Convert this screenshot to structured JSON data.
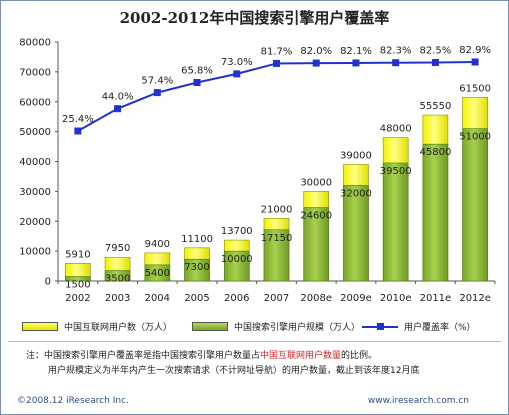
{
  "title": "2002-2012年中国搜索引擎用户覆盖率",
  "chart_data": {
    "type": "bar",
    "categories": [
      "2002",
      "2003",
      "2004",
      "2005",
      "2006",
      "2007",
      "2008e",
      "2009e",
      "2010e",
      "2011e",
      "2012e"
    ],
    "series": [
      {
        "name": "中国互联网用户数（万人）",
        "type": "bar",
        "color": "#ffff33",
        "values": [
          5910,
          7950,
          9400,
          11100,
          13700,
          21000,
          30000,
          39000,
          48000,
          55550,
          61500
        ]
      },
      {
        "name": "中国搜索引擎用户规模（万人）",
        "type": "bar",
        "color": "#8fbf3a",
        "values": [
          1500,
          3500,
          5400,
          7300,
          10000,
          17150,
          24600,
          32000,
          39500,
          45800,
          51000
        ]
      },
      {
        "name": "用户覆盖率（%）",
        "type": "line",
        "color": "#2233cc",
        "values": [
          25.4,
          44.0,
          57.4,
          65.8,
          73.0,
          81.7,
          82.0,
          82.1,
          82.3,
          82.5,
          82.9
        ],
        "labels": [
          "25.4%",
          "44.0%",
          "57.4%",
          "65.8%",
          "73.0%",
          "81.7%",
          "82.0%",
          "82.1%",
          "82.3%",
          "82.5%",
          "82.9%"
        ]
      }
    ],
    "yticks": [
      "0",
      "10000",
      "20000",
      "30000",
      "40000",
      "50000",
      "60000",
      "70000",
      "80000"
    ],
    "ylim": [
      0,
      80000
    ],
    "grid": false
  },
  "legend": {
    "internet": "中国互联网用户数（万人）",
    "search": "中国搜索引擎用户规模（万人）",
    "coverage": "用户覆盖率（%）"
  },
  "note": {
    "prefix": "注：",
    "line1_a": "中国搜索引擎用户覆盖率是指中国搜索引擎用户数量占",
    "line1_red": "中国互联网用户数量",
    "line1_b": "的比例。",
    "line2": "用户规模定义为半年内产生一次搜索请求（不计网址导航）的用户数量，截止到该年度12月底"
  },
  "footer": {
    "copyright": "©2008.12 iResearch Inc.",
    "url": "www.iresearch.com.cn"
  }
}
